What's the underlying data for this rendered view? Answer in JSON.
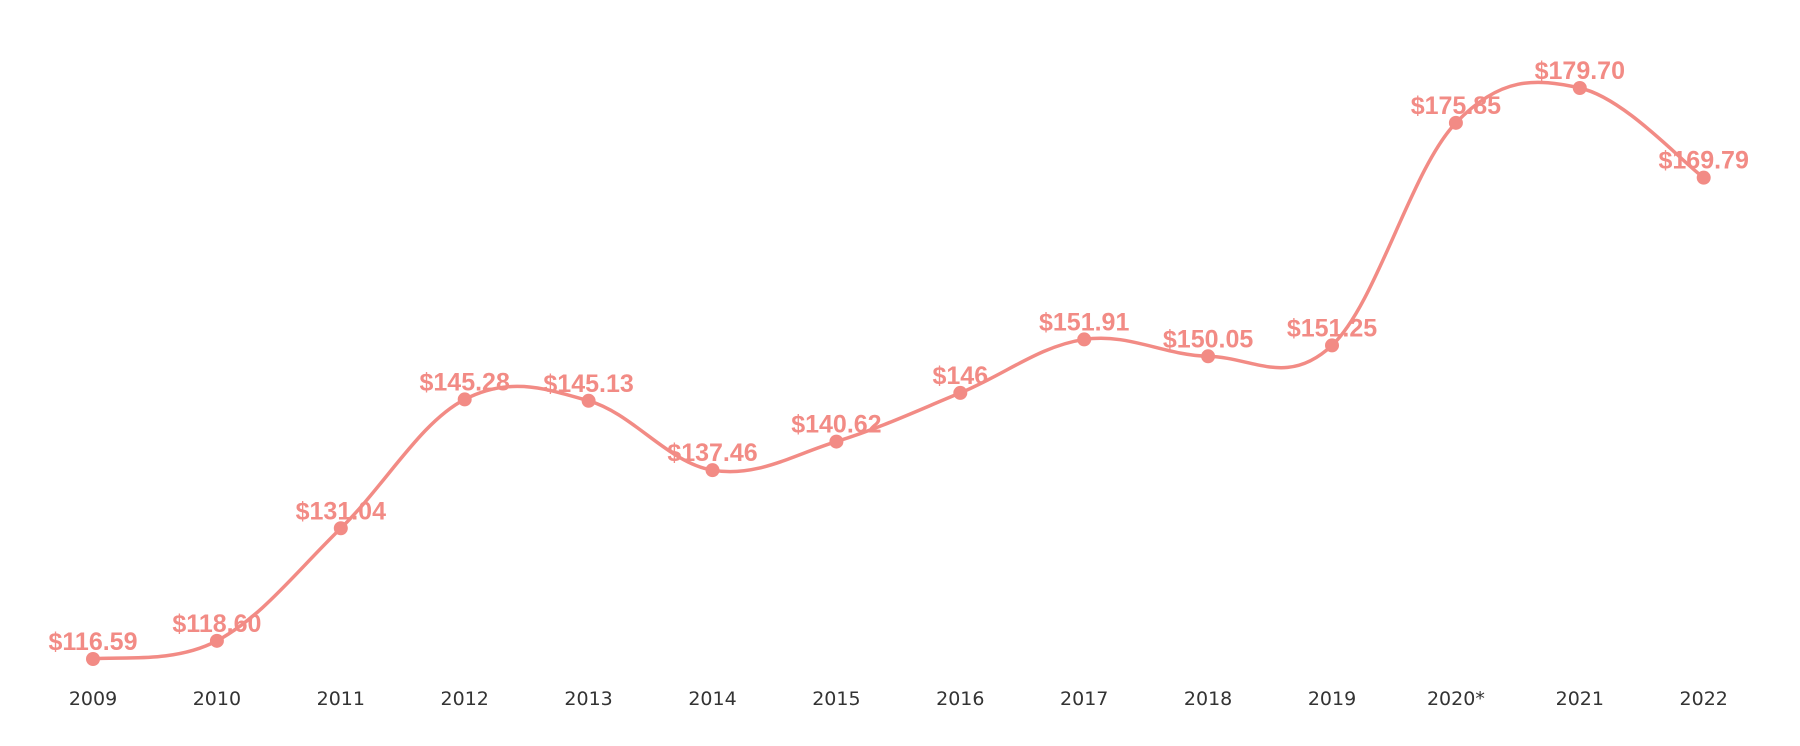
{
  "colors": {
    "series": "#f28b85",
    "tick_text": "#333333",
    "background": "#ffffff"
  },
  "chart_data": {
    "type": "line",
    "smooth": true,
    "categories": [
      "2009",
      "2010",
      "2011",
      "2012",
      "2013",
      "2014",
      "2015",
      "2016",
      "2017",
      "2018",
      "2019",
      "2020*",
      "2021",
      "2022"
    ],
    "series": [
      {
        "values": [
          116.59,
          118.6,
          131.04,
          145.28,
          145.13,
          137.46,
          140.62,
          146,
          151.91,
          150.05,
          151.25,
          175.85,
          179.7,
          169.79
        ],
        "labels": [
          "$116.59",
          "$118.60",
          "$131.04",
          "$145.28",
          "$145.13",
          "$137.46",
          "$140.62",
          "$146",
          "$151.91",
          "$150.05",
          "$151.25",
          "$175.85",
          "$179.70",
          "$169.79"
        ]
      }
    ],
    "title": "",
    "xlabel": "",
    "ylabel": "",
    "ylim": [
      116.59,
      179.7
    ],
    "grid": false,
    "legend": "none",
    "y_axis_visible": false
  }
}
